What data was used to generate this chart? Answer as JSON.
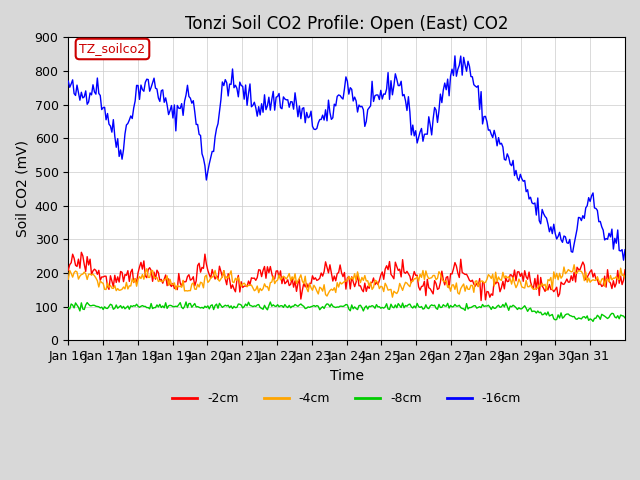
{
  "title": "Tonzi Soil CO2 Profile: Open (East) CO2",
  "ylabel": "Soil CO2 (mV)",
  "xlabel": "Time",
  "legend_label": "TZ_soilco2",
  "ylim": [
    0,
    900
  ],
  "yticks": [
    0,
    100,
    200,
    300,
    400,
    500,
    600,
    700,
    800,
    900
  ],
  "xtick_labels": [
    "Jan 16",
    "Jan 17",
    "Jan 18",
    "Jan 19",
    "Jan 20",
    "Jan 21",
    "Jan 22",
    "Jan 23",
    "Jan 24",
    "Jan 25",
    "Jan 26",
    "Jan 27",
    "Jan 28",
    "Jan 29",
    "Jan 30",
    "Jan 31"
  ],
  "line_colors": {
    "-2cm": "#ff0000",
    "-4cm": "#ffa500",
    "-8cm": "#00cc00",
    "-16cm": "#0000ff"
  },
  "line_labels": [
    "-2cm",
    "-4cm",
    "-8cm",
    "-16cm"
  ],
  "fig_bg_color": "#d8d8d8",
  "plot_bg_color": "#ffffff",
  "title_fontsize": 12,
  "axis_fontsize": 10,
  "tick_fontsize": 9
}
